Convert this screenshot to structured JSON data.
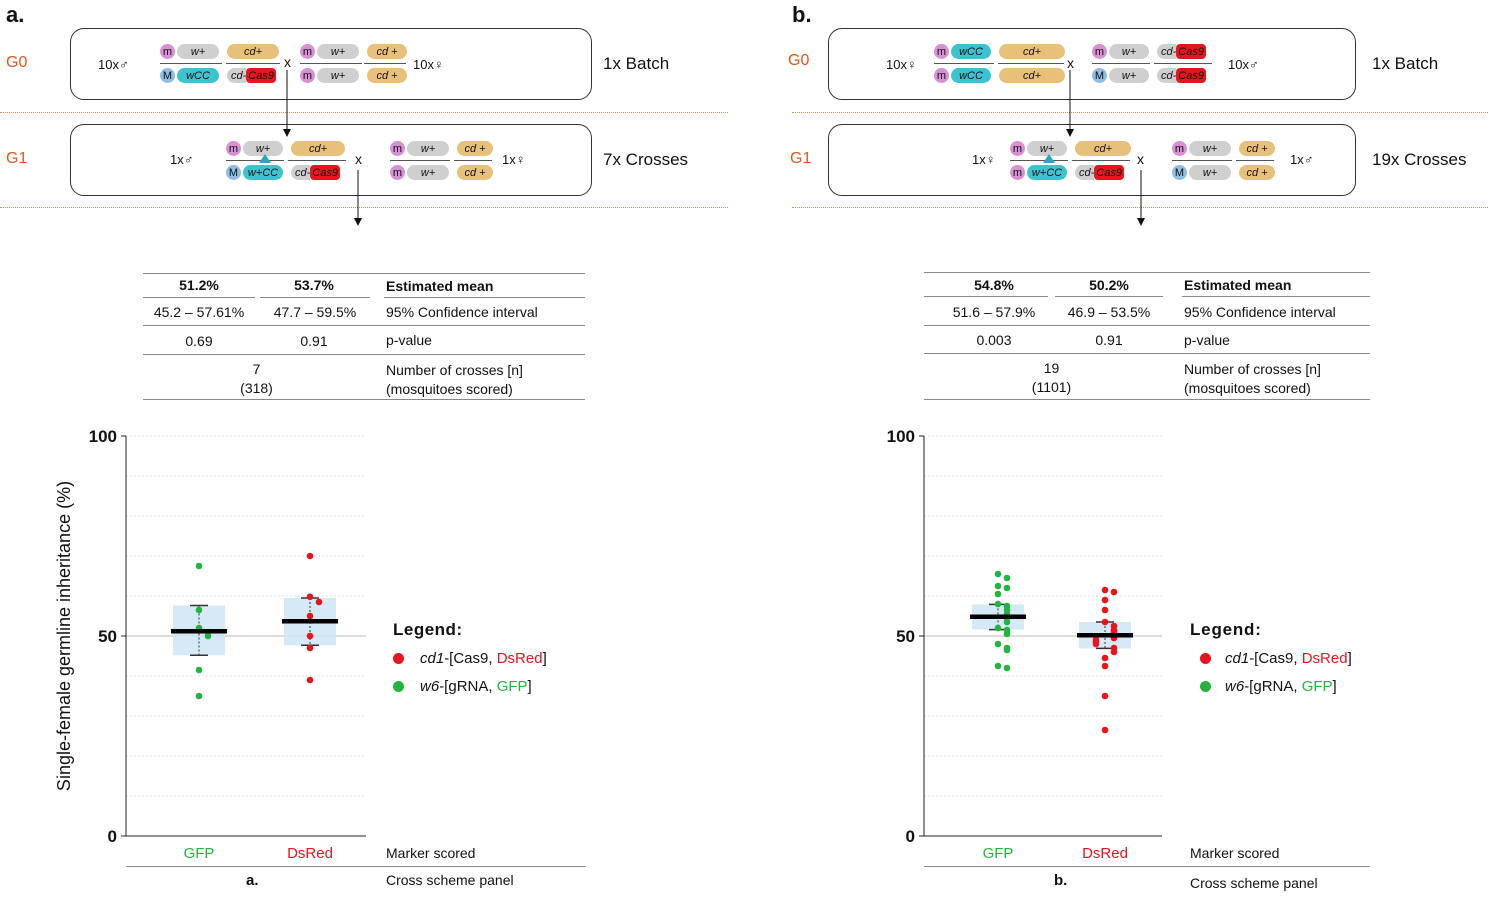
{
  "panels": [
    {
      "letter": "a.",
      "g0": {
        "gen": "G0",
        "left_count": "10x",
        "left_sex": "♂",
        "right_count": "10x",
        "right_sex": "♀",
        "cross": "x",
        "summary": "1x Batch",
        "left_top": {
          "m": "m",
          "a": "w+",
          "b": "cd+"
        },
        "left_bottom": {
          "m": "M",
          "a": "wCC",
          "b_prefix": "cd-",
          "b_red": "Cas9"
        },
        "right_top": {
          "m": "m",
          "a": "w+",
          "b": "cd +"
        },
        "right_bottom": {
          "m": "m",
          "a": "w+",
          "b": "cd +"
        }
      },
      "g1": {
        "gen": "G1",
        "left_count": "1x",
        "left_sex": "♂",
        "right_count": "1x",
        "right_sex": "♀",
        "cross": "x",
        "summary": "7x Crosses",
        "left_top": {
          "m": "m",
          "a": "w+",
          "b": "cd+"
        },
        "left_bottom": {
          "m": "M",
          "a": "w+CC",
          "b_prefix": "cd-",
          "b_red": "Cas9"
        },
        "right_top": {
          "m": "m",
          "a": "w+",
          "b": "cd +"
        },
        "right_bottom": {
          "m": "m",
          "a": "w+",
          "b": "cd +"
        }
      },
      "table": {
        "means": [
          "51.2%",
          "53.7%"
        ],
        "ci": [
          "45.2 – 57.61%",
          "47.7 – 59.5%"
        ],
        "pvals": [
          "0.69",
          "0.91"
        ],
        "n": "7",
        "scored": "(318)",
        "row_labels": [
          "Estimated mean",
          "95% Confidence interval",
          "p-value",
          "Number of crosses [n]",
          "(mosquitoes scored)"
        ]
      },
      "footer": {
        "marker_label": "Marker scored",
        "scheme_label": "Cross scheme panel",
        "panel_ref": "a."
      }
    },
    {
      "letter": "b.",
      "g0": {
        "gen": "G0",
        "left_count": "10x",
        "left_sex": "♀",
        "right_count": "10x",
        "right_sex": "♂",
        "cross": "x",
        "summary": "1x Batch",
        "left_top": {
          "m": "m",
          "a": "wCC",
          "b": "cd+"
        },
        "left_bottom": {
          "m": "m",
          "a": "wCC",
          "b": "cd+"
        },
        "right_top": {
          "m": "m",
          "a": "w+",
          "b_prefix": "cd-",
          "b_red": "Cas9"
        },
        "right_bottom": {
          "m": "M",
          "a": "w+",
          "b_prefix": "cd-",
          "b_red": "Cas9"
        }
      },
      "g1": {
        "gen": "G1",
        "left_count": "1x",
        "left_sex": "♀",
        "right_count": "1x",
        "right_sex": "♂",
        "cross": "x",
        "summary": "19x Crosses",
        "left_top": {
          "m": "m",
          "a": "w+",
          "b": "cd+"
        },
        "left_bottom": {
          "m": "m",
          "a": "w+CC",
          "b_prefix": "cd-",
          "b_red": "Cas9"
        },
        "right_top": {
          "m": "m",
          "a": "w+",
          "b": "cd +"
        },
        "right_bottom": {
          "m": "M",
          "a": "w+",
          "b": "cd +"
        }
      },
      "table": {
        "means": [
          "54.8%",
          "50.2%"
        ],
        "ci": [
          "51.6 – 57.9%",
          "46.9 – 53.5%"
        ],
        "pvals": [
          "0.003",
          "0.91"
        ],
        "n": "19",
        "scored": "(1101)",
        "row_labels": [
          "Estimated mean",
          "95% Confidence interval",
          "p-value",
          "Number of crosses [n]",
          "(mosquitoes scored)"
        ]
      },
      "footer": {
        "marker_label": "Marker scored",
        "scheme_label": "Cross scheme panel",
        "panel_ref": "b."
      }
    }
  ],
  "legend": {
    "title": "Legend:",
    "items": [
      {
        "color": "#e8141e",
        "italic": "cd1",
        "pre": "-[Cas9, ",
        "colored": "DsRed",
        "post": "]"
      },
      {
        "color": "#22b53c",
        "italic": "w6",
        "pre": "-[gRNA, ",
        "colored": "GFP",
        "post": "]"
      }
    ]
  },
  "chart_data": [
    {
      "type": "scatter",
      "ylabel": "Single-female germline inheritance (%)",
      "ylim": [
        0,
        100
      ],
      "yticks": [
        0,
        50,
        100
      ],
      "categories": [
        "GFP",
        "DsRed"
      ],
      "category_colors": [
        "#22b53c",
        "#e8141e"
      ],
      "series": [
        {
          "name": "GFP",
          "mean": 51.2,
          "ci": [
            45.2,
            57.61
          ],
          "points": [
            67.5,
            56.5,
            52.0,
            51.0,
            50.0,
            41.5,
            35.0
          ]
        },
        {
          "name": "DsRed",
          "mean": 53.7,
          "ci": [
            47.7,
            59.5
          ],
          "points": [
            70.0,
            59.8,
            58.5,
            55.0,
            50.0,
            47.0,
            39.0
          ]
        }
      ]
    },
    {
      "type": "scatter",
      "ylabel": "",
      "ylim": [
        0,
        100
      ],
      "yticks": [
        0,
        50,
        100
      ],
      "categories": [
        "GFP",
        "DsRed"
      ],
      "category_colors": [
        "#22b53c",
        "#e8141e"
      ],
      "series": [
        {
          "name": "GFP",
          "mean": 54.8,
          "ci": [
            51.6,
            57.9
          ],
          "points": [
            65.5,
            64.5,
            62.5,
            62.0,
            60.5,
            58.0,
            57.5,
            56.5,
            55.5,
            54.5,
            53.5,
            52.0,
            51.5,
            50.5,
            48.0,
            47.0,
            46.5,
            42.5,
            42.0
          ]
        },
        {
          "name": "DsRed",
          "mean": 50.2,
          "ci": [
            46.9,
            53.5
          ],
          "points": [
            61.5,
            61.0,
            59.0,
            56.5,
            53.5,
            52.5,
            51.5,
            51.0,
            50.0,
            49.5,
            49.0,
            48.5,
            48.0,
            47.0,
            46.0,
            44.5,
            42.5,
            35.0,
            26.5
          ]
        }
      ]
    }
  ]
}
